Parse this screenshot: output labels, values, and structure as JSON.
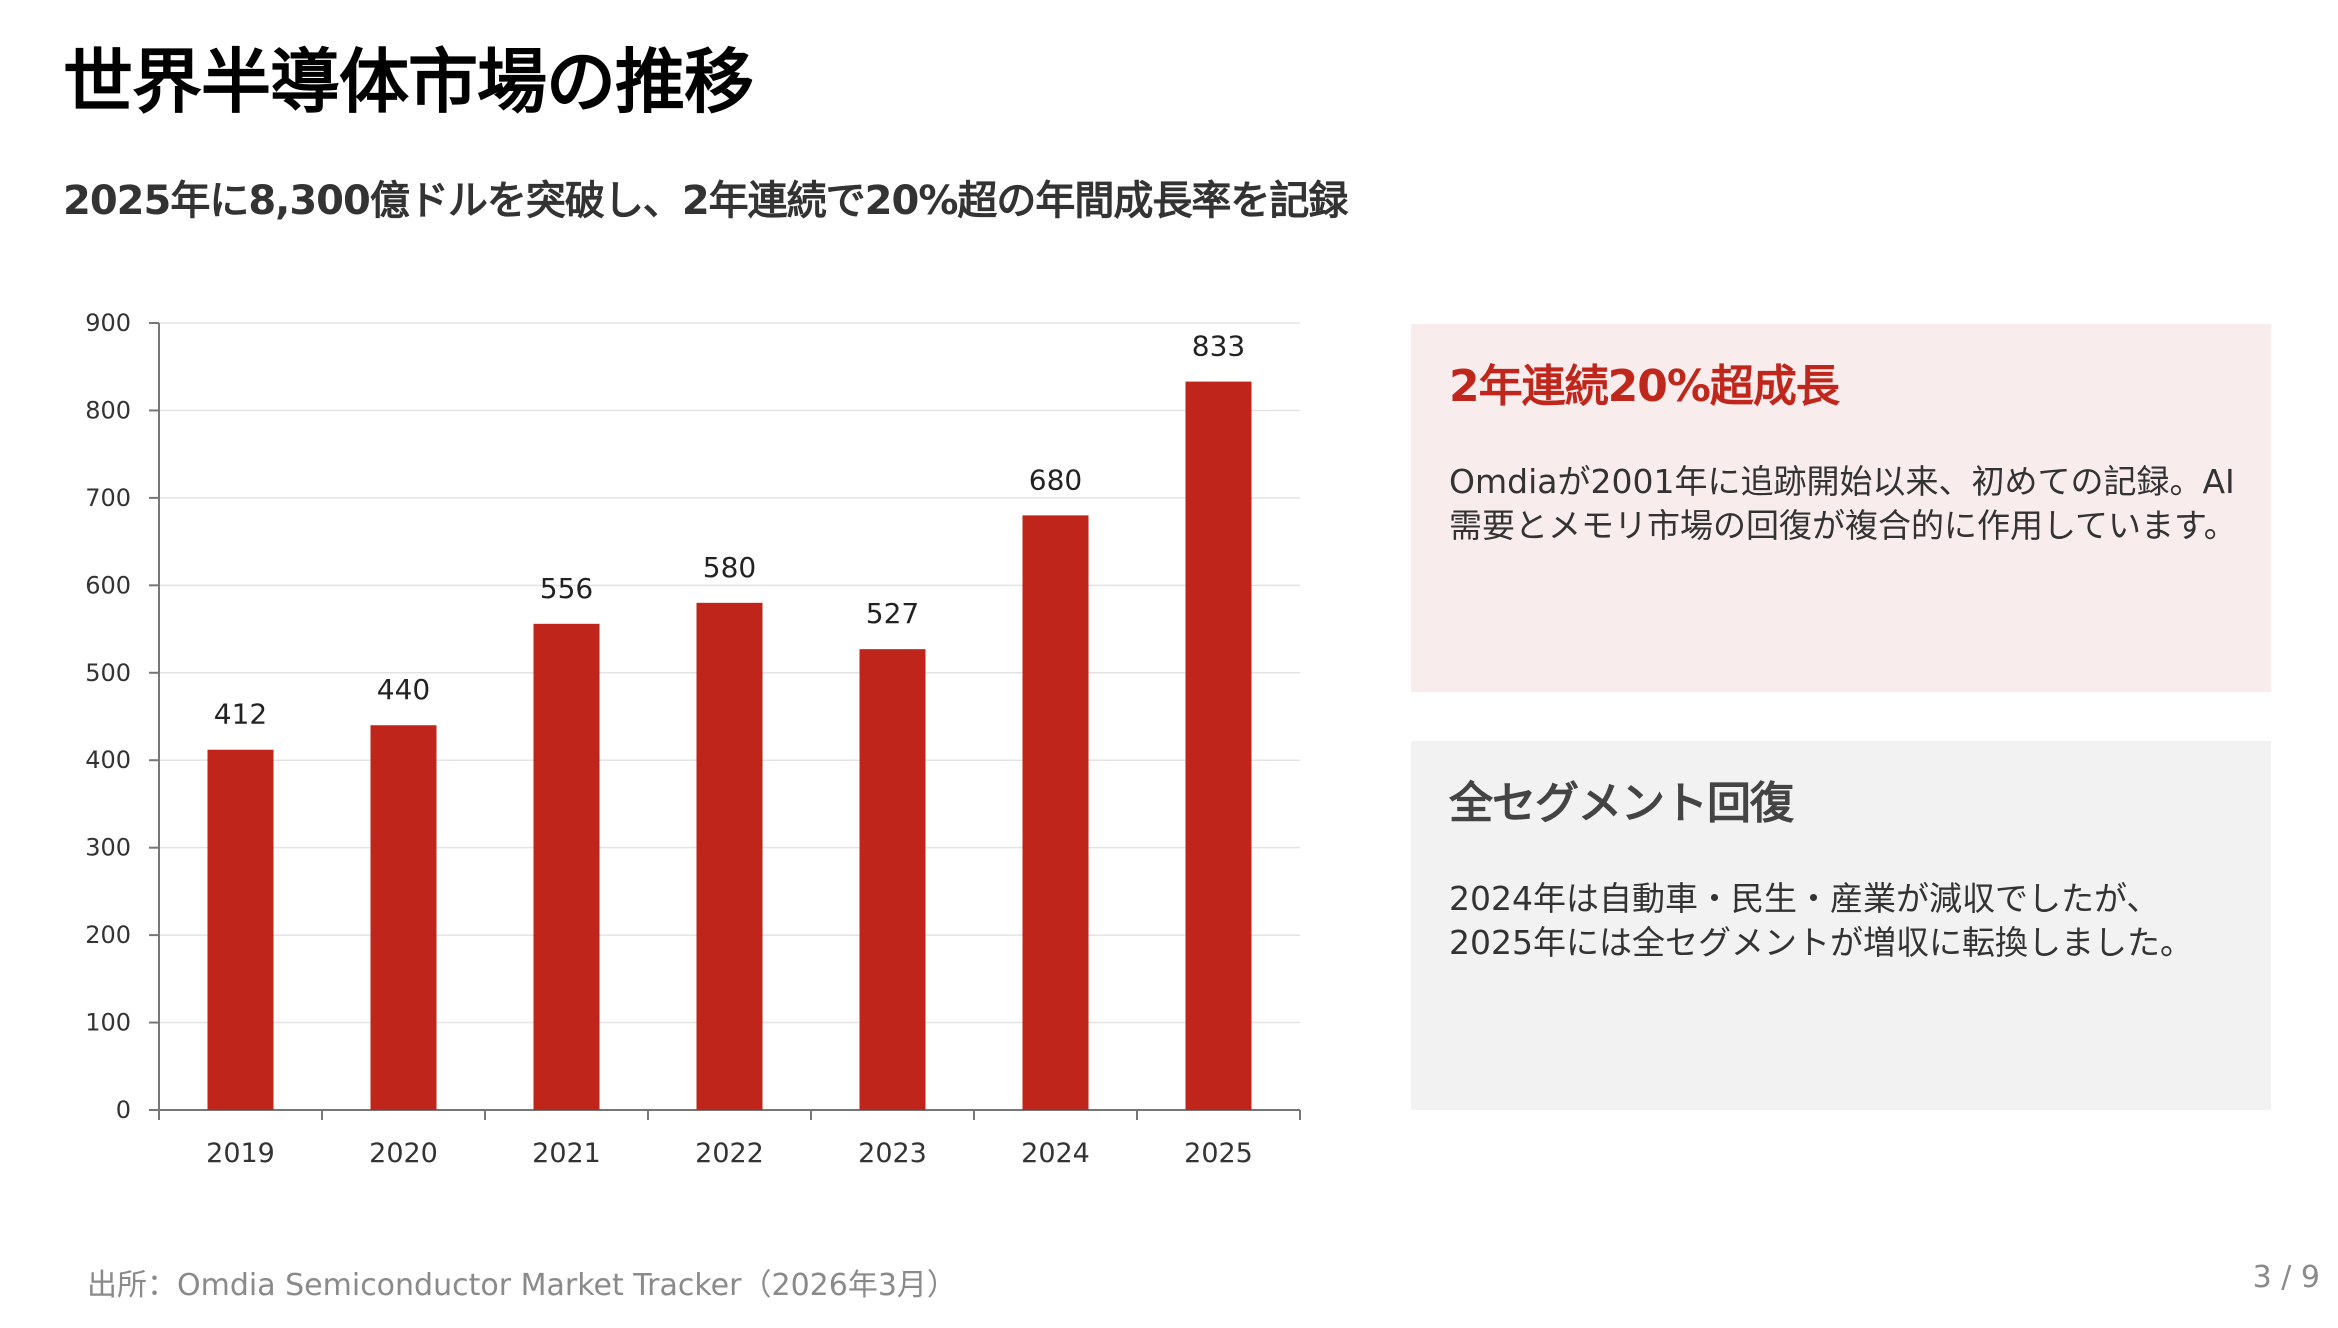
{
  "header": {
    "title": "世界半導体市場の推移",
    "subtitle": "2025年に8,300億ドルを突破し、2年連続で20%超の年間成長率を記録"
  },
  "chart_data": {
    "type": "bar",
    "categories": [
      "2019",
      "2020",
      "2021",
      "2022",
      "2023",
      "2024",
      "2025"
    ],
    "values": [
      412,
      440,
      556,
      580,
      527,
      680,
      833
    ],
    "data_labels": [
      "412",
      "440",
      "556",
      "580",
      "527",
      "680",
      "833"
    ],
    "ylim": [
      0,
      900
    ],
    "yticks": [
      0,
      100,
      200,
      300,
      400,
      500,
      600,
      700,
      800,
      900
    ],
    "grid": true,
    "bar_color": "#bf251a"
  },
  "cards": [
    {
      "title": "2年連続20%超成長",
      "body": "Omdiaが2001年に追跡開始以来、初めての記録。AI需要とメモリ市場の回復が複合的に作用しています。",
      "accent": "#c0271c"
    },
    {
      "title": "全セグメント回復",
      "body": "2024年は自動車・民生・産業が減収でしたが、2025年には全セグメントが増収に転換しました。"
    }
  ],
  "footer": {
    "source": "出所：Omdia Semiconductor Market Tracker（2026年3月）",
    "page": "3 / 9"
  }
}
